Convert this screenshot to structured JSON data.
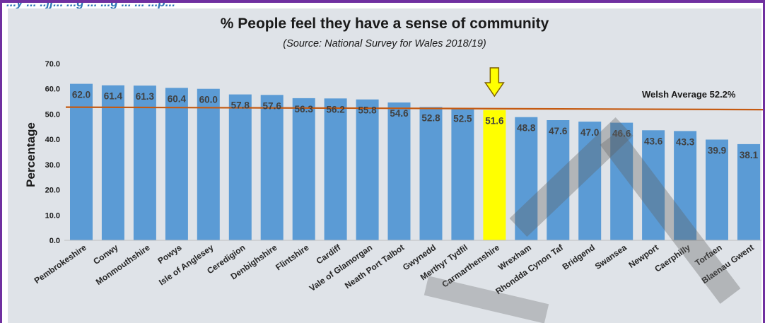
{
  "header": {
    "caption": "...y ... ..jj... ...g ... ...g ... ... ...p..."
  },
  "chart_data": {
    "type": "bar",
    "title": "% People feel they have a sense of community",
    "subtitle": "(Source: National Survey for Wales 2018/19)",
    "xlabel": "",
    "ylabel": "Percentage",
    "ylim": [
      0,
      70
    ],
    "yticks": [
      "0.0",
      "10.0",
      "20.0",
      "30.0",
      "40.0",
      "50.0",
      "60.0",
      "70.0"
    ],
    "categories": [
      "Pembrokeshire",
      "Conwy",
      "Monmouthshire",
      "Powys",
      "Isle of Anglesey",
      "Ceredigion",
      "Denbighshire",
      "Flintshire",
      "Cardiff",
      "Vale of Glamorgan",
      "Neath Port Talbot",
      "Gwynedd",
      "Merthyr Tydfil",
      "Carmarthenshire",
      "Wrexham",
      "Rhondda Cynon Taf",
      "Bridgend",
      "Swansea",
      "Newport",
      "Caerphilly",
      "Torfaen",
      "Blaenau Gwent"
    ],
    "values": [
      62.0,
      61.4,
      61.3,
      60.4,
      60.0,
      57.8,
      57.6,
      56.3,
      56.2,
      55.8,
      54.6,
      52.8,
      52.5,
      51.6,
      48.8,
      47.6,
      47.0,
      46.6,
      43.6,
      43.3,
      39.9,
      38.1
    ],
    "value_labels": [
      "62.0",
      "61.4",
      "61.3",
      "60.4",
      "60.0",
      "57.8",
      "57.6",
      "56.3",
      "56.2",
      "55.8",
      "54.6",
      "52.8",
      "52.5",
      "51.6",
      "48.8",
      "47.6",
      "47.0",
      "46.6",
      "43.6",
      "43.3",
      "39.9",
      "38.1"
    ],
    "highlight": "Carmarthenshire",
    "reference_line": {
      "label": "Welsh Average 52.2%",
      "value": 52.2
    },
    "grid": false,
    "colors": {
      "bar": "#5b9bd5",
      "highlight": "#ffff00",
      "average_line": "#c55a11",
      "arrow": "#ffff00",
      "arrow_outline": "#7f6000"
    }
  }
}
